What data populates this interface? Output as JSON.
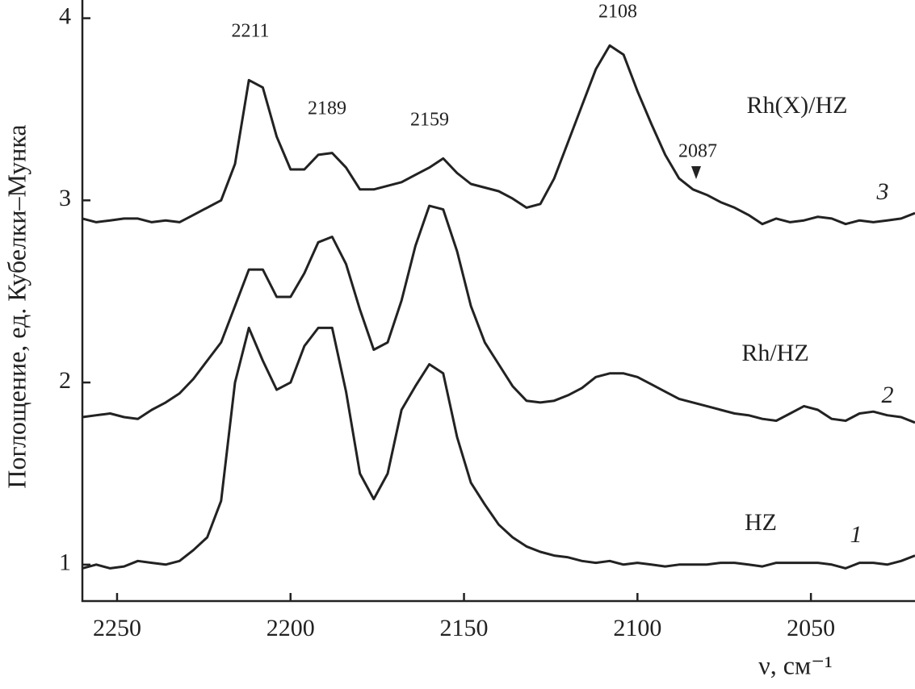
{
  "chart_data": {
    "type": "line",
    "y_label": "Поглощение, ед. Кубелки–Мунка",
    "x_label": "ν, см⁻¹",
    "xlim": [
      2260,
      2020
    ],
    "xticks": [
      2250,
      2200,
      2150,
      2100,
      2050
    ],
    "ylim": [
      0.8,
      4.1
    ],
    "yticks": [
      1,
      2,
      3,
      4
    ],
    "x": [
      2260,
      2256,
      2252,
      2248,
      2244,
      2240,
      2236,
      2232,
      2228,
      2224,
      2220,
      2216,
      2212,
      2208,
      2204,
      2200,
      2196,
      2192,
      2188,
      2184,
      2180,
      2176,
      2172,
      2168,
      2164,
      2160,
      2156,
      2152,
      2148,
      2144,
      2140,
      2136,
      2132,
      2128,
      2124,
      2120,
      2116,
      2112,
      2108,
      2104,
      2100,
      2096,
      2092,
      2088,
      2084,
      2080,
      2076,
      2072,
      2068,
      2064,
      2060,
      2056,
      2052,
      2048,
      2044,
      2040,
      2036,
      2032,
      2028,
      2024,
      2020
    ],
    "series": [
      {
        "name": "HZ",
        "curve_label": "1",
        "color": "#222222",
        "values": [
          0.98,
          1.0,
          0.98,
          0.99,
          1.02,
          1.01,
          1.0,
          1.02,
          1.08,
          1.15,
          1.35,
          2.0,
          2.3,
          2.12,
          1.96,
          2.0,
          2.2,
          2.3,
          2.3,
          1.95,
          1.5,
          1.36,
          1.5,
          1.85,
          1.98,
          2.1,
          2.05,
          1.7,
          1.45,
          1.33,
          1.22,
          1.15,
          1.1,
          1.07,
          1.05,
          1.04,
          1.02,
          1.01,
          1.02,
          1.0,
          1.01,
          1.0,
          0.99,
          1.0,
          1.0,
          1.0,
          1.01,
          1.01,
          1.0,
          0.99,
          1.01,
          1.01,
          1.01,
          1.01,
          1.0,
          0.98,
          1.01,
          1.01,
          1.0,
          1.02,
          1.05
        ]
      },
      {
        "name": "Rh/HZ",
        "curve_label": "2",
        "color": "#222222",
        "values": [
          1.81,
          1.82,
          1.83,
          1.81,
          1.8,
          1.85,
          1.89,
          1.94,
          2.02,
          2.12,
          2.22,
          2.42,
          2.62,
          2.62,
          2.47,
          2.47,
          2.6,
          2.77,
          2.8,
          2.65,
          2.4,
          2.18,
          2.22,
          2.45,
          2.75,
          2.97,
          2.95,
          2.72,
          2.42,
          2.22,
          2.1,
          1.98,
          1.9,
          1.89,
          1.9,
          1.93,
          1.97,
          2.03,
          2.05,
          2.05,
          2.03,
          1.99,
          1.95,
          1.91,
          1.89,
          1.87,
          1.85,
          1.83,
          1.82,
          1.8,
          1.79,
          1.83,
          1.87,
          1.85,
          1.8,
          1.79,
          1.83,
          1.84,
          1.82,
          1.81,
          1.78
        ]
      },
      {
        "name": "Rh(X)/HZ",
        "curve_label": "3",
        "color": "#222222",
        "values": [
          2.9,
          2.88,
          2.89,
          2.9,
          2.9,
          2.88,
          2.89,
          2.88,
          2.92,
          2.96,
          3.0,
          3.2,
          3.66,
          3.62,
          3.35,
          3.17,
          3.17,
          3.25,
          3.26,
          3.18,
          3.06,
          3.06,
          3.08,
          3.1,
          3.14,
          3.18,
          3.23,
          3.15,
          3.09,
          3.07,
          3.05,
          3.01,
          2.96,
          2.98,
          3.12,
          3.32,
          3.52,
          3.72,
          3.85,
          3.8,
          3.6,
          3.42,
          3.25,
          3.12,
          3.06,
          3.03,
          2.99,
          2.96,
          2.92,
          2.87,
          2.9,
          2.88,
          2.89,
          2.91,
          2.9,
          2.87,
          2.89,
          2.88,
          2.89,
          2.9,
          2.93
        ]
      }
    ],
    "annotations": [
      "2211",
      "2189",
      "2159",
      "2108",
      "2087"
    ]
  }
}
